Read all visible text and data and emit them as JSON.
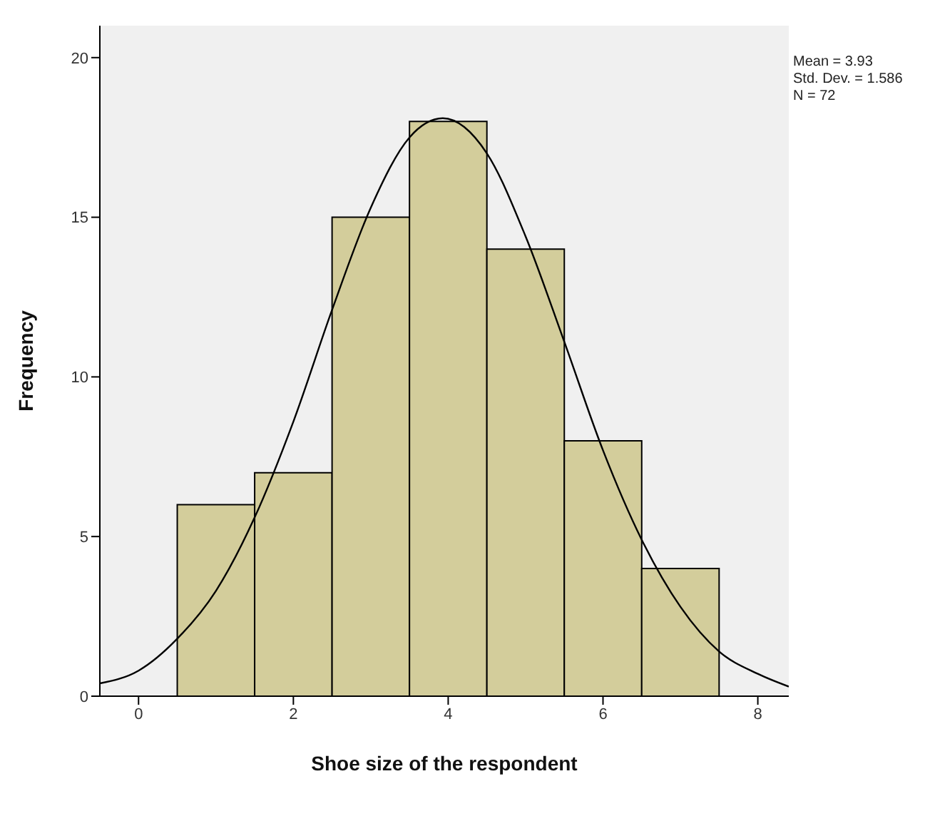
{
  "chart_data": {
    "type": "histogram",
    "xlabel": "Shoe size of the respondent",
    "ylabel": "Frequency",
    "bins": [
      0.5,
      1.5,
      2.5,
      3.5,
      4.5,
      5.5,
      6.5,
      7.5
    ],
    "values": [
      6,
      7,
      15,
      18,
      14,
      8,
      4
    ],
    "color": "#d3cd9b",
    "xlim": [
      -0.5,
      8.4
    ],
    "xticks": [
      0,
      2,
      4,
      6,
      8
    ],
    "ylim": [
      0,
      21
    ],
    "yticks": [
      0,
      5,
      10,
      15,
      20
    ],
    "grid": false,
    "annotations": [
      "Mean = 3.93",
      "Std. Dev. = 1.586",
      "N = 72"
    ],
    "series": [
      {
        "type": "line",
        "color": "#000000",
        "x": [
          -0.5,
          0,
          0.5,
          1,
          1.5,
          2,
          2.5,
          3,
          3.5,
          3.93,
          4.5,
          5,
          5.5,
          6,
          6.5,
          7,
          7.5,
          8,
          8.4
        ],
        "values": [
          0.4,
          0.8,
          1.8,
          3.3,
          5.6,
          8.6,
          12.1,
          15.3,
          17.5,
          18.1,
          17,
          14.4,
          11.1,
          7.7,
          4.9,
          2.8,
          1.4,
          0.7,
          0.3
        ]
      }
    ]
  }
}
